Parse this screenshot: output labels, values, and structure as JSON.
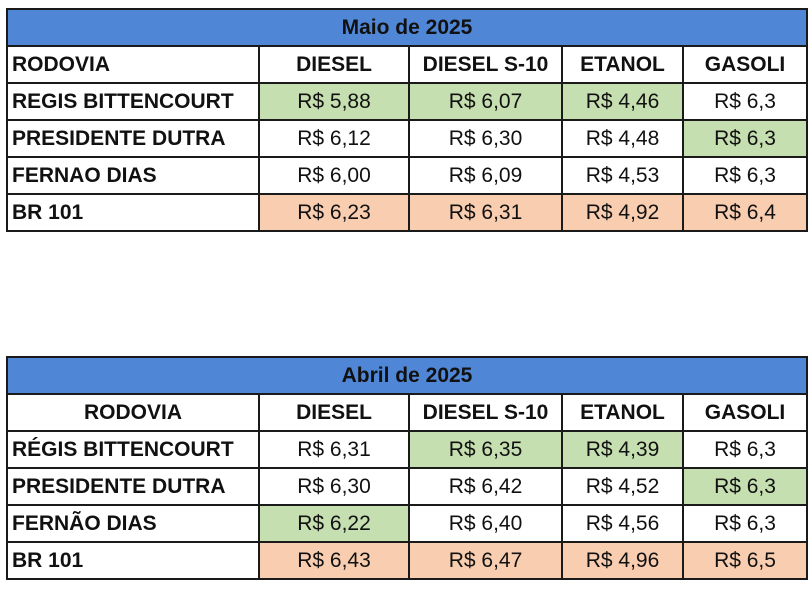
{
  "colors": {
    "header": "#4f86d6",
    "lowest": "#c6dfb0",
    "highest": "#f9cdb0"
  },
  "tables": [
    {
      "title": "Maio de 2025",
      "columns": [
        "RODOVIA",
        "DIESEL",
        "DIESEL S-10",
        "ETANOL",
        "GASOLI"
      ],
      "rows": [
        {
          "name": "REGIS BITTENCOURT",
          "values": [
            "R$ 5,88",
            "R$ 6,07",
            "R$ 4,46",
            "R$ 6,3"
          ],
          "hl": [
            "green",
            "green",
            "green",
            ""
          ]
        },
        {
          "name": "PRESIDENTE DUTRA",
          "values": [
            "R$ 6,12",
            "R$ 6,30",
            "R$ 4,48",
            "R$ 6,3"
          ],
          "hl": [
            "",
            "",
            "",
            "green"
          ]
        },
        {
          "name": "FERNAO DIAS",
          "values": [
            "R$ 6,00",
            "R$ 6,09",
            "R$ 4,53",
            "R$ 6,3"
          ],
          "hl": [
            "",
            "",
            "",
            ""
          ]
        },
        {
          "name": "BR 101",
          "values": [
            "R$ 6,23",
            "R$ 6,31",
            "R$ 4,92",
            "R$ 6,4"
          ],
          "hl": [
            "orange",
            "orange",
            "orange",
            "orange"
          ]
        }
      ]
    },
    {
      "title": "Abril de 2025",
      "columns": [
        "RODOVIA",
        "DIESEL",
        "DIESEL S-10",
        "ETANOL",
        "GASOLI"
      ],
      "rows": [
        {
          "name": "RÉGIS BITTENCOURT",
          "values": [
            "R$ 6,31",
            "R$ 6,35",
            "R$ 4,39",
            "R$ 6,3"
          ],
          "hl": [
            "",
            "green",
            "green",
            ""
          ]
        },
        {
          "name": "PRESIDENTE DUTRA",
          "values": [
            "R$ 6,30",
            "R$ 6,42",
            "R$ 4,52",
            "R$ 6,3"
          ],
          "hl": [
            "",
            "",
            "",
            "green"
          ]
        },
        {
          "name": "FERNÃO DIAS",
          "values": [
            "R$ 6,22",
            "R$ 6,40",
            "R$ 4,56",
            "R$ 6,3"
          ],
          "hl": [
            "green",
            "",
            "",
            ""
          ]
        },
        {
          "name": "BR 101",
          "values": [
            "R$ 6,43",
            "R$ 6,47",
            "R$ 4,96",
            "R$ 6,5"
          ],
          "hl": [
            "orange",
            "orange",
            "orange",
            "orange"
          ]
        }
      ]
    }
  ]
}
